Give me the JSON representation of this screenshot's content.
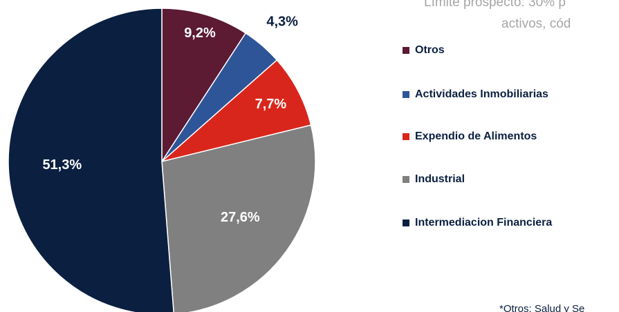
{
  "chart_data": {
    "type": "pie",
    "title_lines": [
      "Límite prospecto: 30% p",
      "activos, cód"
    ],
    "footnote": "*Otros: Salud y Se",
    "categories": [
      "Otros",
      "Actividades Inmobiliarias",
      "Expendio de Alimentos",
      "Industrial",
      "Intermediacion Financiera"
    ],
    "values": [
      9.2,
      4.3,
      7.7,
      27.6,
      51.3
    ],
    "value_labels": [
      "9,2%",
      "4,3%",
      "7,7%",
      "27,6%",
      "51,3%"
    ],
    "colors": [
      "#5c1a33",
      "#2e5597",
      "#d9261c",
      "#808080",
      "#0b1f40"
    ]
  }
}
